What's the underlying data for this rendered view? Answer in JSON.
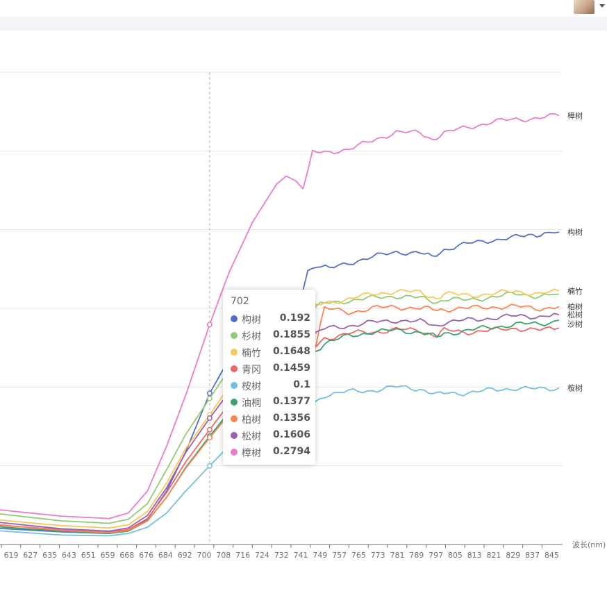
{
  "chart_data": {
    "type": "line",
    "xlabel": "波长(nm)",
    "ylabel": "",
    "x_ticks": [
      "619",
      "627",
      "635",
      "643",
      "651",
      "659",
      "668",
      "676",
      "684",
      "692",
      "700",
      "708",
      "716",
      "724",
      "732",
      "741",
      "749",
      "757",
      "765",
      "773",
      "781",
      "789",
      "797",
      "805",
      "813",
      "821",
      "829",
      "837",
      "845"
    ],
    "ylim": [
      0,
      0.6
    ],
    "grid": true,
    "tooltip": {
      "title": "702",
      "rows": [
        {
          "name": "构树",
          "value": "0.192"
        },
        {
          "name": "杉树",
          "value": "0.1855"
        },
        {
          "name": "楠竹",
          "value": "0.1648"
        },
        {
          "name": "青冈",
          "value": "0.1459"
        },
        {
          "name": "桉树",
          "value": "0.1"
        },
        {
          "name": "油桐",
          "value": "0.1377"
        },
        {
          "name": "柏树",
          "value": "0.1356"
        },
        {
          "name": "松树",
          "value": "0.1606"
        },
        {
          "name": "樟树",
          "value": "0.2794"
        }
      ]
    },
    "series": [
      {
        "name": "构树",
        "color": "#5470c6",
        "label": "构树",
        "points": [
          [
            611,
            0.021
          ],
          [
            640,
            0.016
          ],
          [
            660,
            0.014
          ],
          [
            668,
            0.018
          ],
          [
            676,
            0.032
          ],
          [
            684,
            0.068
          ],
          [
            692,
            0.118
          ],
          [
            702,
            0.192
          ],
          [
            710,
            0.235
          ],
          [
            720,
            0.275
          ],
          [
            728,
            0.303
          ],
          [
            732,
            0.315
          ],
          [
            735,
            0.315
          ],
          [
            739,
            0.298
          ],
          [
            743,
            0.348
          ],
          [
            747,
            0.355
          ],
          [
            752,
            0.35
          ],
          [
            760,
            0.358
          ],
          [
            770,
            0.365
          ],
          [
            780,
            0.372
          ],
          [
            790,
            0.37
          ],
          [
            795,
            0.365
          ],
          [
            800,
            0.375
          ],
          [
            810,
            0.382
          ],
          [
            820,
            0.387
          ],
          [
            830,
            0.39
          ],
          [
            837,
            0.394
          ],
          [
            842,
            0.395
          ],
          [
            848,
            0.397
          ]
        ]
      },
      {
        "name": "杉树",
        "color": "#91cc75",
        "label": "",
        "points": [
          [
            611,
            0.04
          ],
          [
            640,
            0.03
          ],
          [
            660,
            0.027
          ],
          [
            668,
            0.032
          ],
          [
            676,
            0.052
          ],
          [
            684,
            0.095
          ],
          [
            692,
            0.14
          ],
          [
            702,
            0.1855
          ],
          [
            710,
            0.222
          ],
          [
            720,
            0.262
          ],
          [
            730,
            0.285
          ],
          [
            740,
            0.293
          ],
          [
            745,
            0.3
          ],
          [
            750,
            0.306
          ],
          [
            760,
            0.31
          ],
          [
            770,
            0.313
          ],
          [
            780,
            0.316
          ],
          [
            790,
            0.313
          ],
          [
            797,
            0.308
          ],
          [
            800,
            0.312
          ],
          [
            810,
            0.31
          ],
          [
            820,
            0.315
          ],
          [
            830,
            0.318
          ],
          [
            840,
            0.316
          ],
          [
            848,
            0.318
          ]
        ]
      },
      {
        "name": "楠竹",
        "color": "#fac858",
        "label": "楠竹",
        "points": [
          [
            611,
            0.032
          ],
          [
            640,
            0.024
          ],
          [
            660,
            0.021
          ],
          [
            668,
            0.025
          ],
          [
            676,
            0.042
          ],
          [
            684,
            0.078
          ],
          [
            692,
            0.122
          ],
          [
            702,
            0.1648
          ],
          [
            710,
            0.2
          ],
          [
            720,
            0.24
          ],
          [
            730,
            0.268
          ],
          [
            740,
            0.29
          ],
          [
            745,
            0.3
          ],
          [
            750,
            0.307
          ],
          [
            760,
            0.312
          ],
          [
            770,
            0.318
          ],
          [
            780,
            0.322
          ],
          [
            790,
            0.32
          ],
          [
            797,
            0.313
          ],
          [
            800,
            0.318
          ],
          [
            810,
            0.317
          ],
          [
            820,
            0.318
          ],
          [
            830,
            0.322
          ],
          [
            840,
            0.318
          ],
          [
            848,
            0.322
          ]
        ]
      },
      {
        "name": "青冈",
        "color": "#ee6666",
        "label": "",
        "points": [
          [
            611,
            0.025
          ],
          [
            640,
            0.019
          ],
          [
            660,
            0.016
          ],
          [
            668,
            0.019
          ],
          [
            676,
            0.033
          ],
          [
            684,
            0.066
          ],
          [
            692,
            0.105
          ],
          [
            702,
            0.1459
          ],
          [
            710,
            0.178
          ],
          [
            720,
            0.213
          ],
          [
            730,
            0.238
          ],
          [
            740,
            0.245
          ],
          [
            745,
            0.248
          ],
          [
            750,
            0.262
          ],
          [
            760,
            0.268
          ],
          [
            770,
            0.27
          ],
          [
            780,
            0.273
          ],
          [
            790,
            0.272
          ],
          [
            797,
            0.265
          ],
          [
            800,
            0.272
          ],
          [
            810,
            0.27
          ],
          [
            820,
            0.272
          ],
          [
            830,
            0.275
          ],
          [
            840,
            0.272
          ],
          [
            848,
            0.275
          ]
        ]
      },
      {
        "name": "桉树",
        "color": "#73c0de",
        "label": "桉树",
        "points": [
          [
            611,
            0.018
          ],
          [
            640,
            0.012
          ],
          [
            660,
            0.011
          ],
          [
            668,
            0.014
          ],
          [
            676,
            0.022
          ],
          [
            684,
            0.04
          ],
          [
            692,
            0.068
          ],
          [
            702,
            0.1
          ],
          [
            710,
            0.125
          ],
          [
            720,
            0.15
          ],
          [
            730,
            0.165
          ],
          [
            740,
            0.172
          ],
          [
            745,
            0.178
          ],
          [
            750,
            0.19
          ],
          [
            760,
            0.194
          ],
          [
            770,
            0.196
          ],
          [
            780,
            0.2
          ],
          [
            790,
            0.198
          ],
          [
            797,
            0.19
          ],
          [
            800,
            0.192
          ],
          [
            810,
            0.193
          ],
          [
            820,
            0.196
          ],
          [
            830,
            0.199
          ],
          [
            840,
            0.197
          ],
          [
            848,
            0.199
          ]
        ]
      },
      {
        "name": "油桐",
        "color": "#3ba272",
        "label": "",
        "points": [
          [
            611,
            0.023
          ],
          [
            640,
            0.017
          ],
          [
            660,
            0.014
          ],
          [
            668,
            0.017
          ],
          [
            676,
            0.03
          ],
          [
            684,
            0.06
          ],
          [
            692,
            0.098
          ],
          [
            702,
            0.1377
          ],
          [
            710,
            0.168
          ],
          [
            720,
            0.203
          ],
          [
            730,
            0.228
          ],
          [
            740,
            0.24
          ],
          [
            745,
            0.244
          ],
          [
            750,
            0.255
          ],
          [
            760,
            0.265
          ],
          [
            770,
            0.27
          ],
          [
            780,
            0.272
          ],
          [
            790,
            0.27
          ],
          [
            797,
            0.263
          ],
          [
            800,
            0.268
          ],
          [
            810,
            0.272
          ],
          [
            820,
            0.276
          ],
          [
            830,
            0.28
          ],
          [
            840,
            0.28
          ],
          [
            848,
            0.285
          ]
        ]
      },
      {
        "name": "柏树",
        "color": "#fc8452",
        "label": "柏树",
        "points": [
          [
            611,
            0.026
          ],
          [
            640,
            0.018
          ],
          [
            660,
            0.015
          ],
          [
            668,
            0.018
          ],
          [
            676,
            0.03
          ],
          [
            684,
            0.06
          ],
          [
            692,
            0.097
          ],
          [
            702,
            0.1356
          ],
          [
            710,
            0.165
          ],
          [
            720,
            0.198
          ],
          [
            730,
            0.225
          ],
          [
            740,
            0.24
          ],
          [
            745,
            0.24
          ],
          [
            750,
            0.3
          ],
          [
            760,
            0.295
          ],
          [
            770,
            0.3
          ],
          [
            780,
            0.302
          ],
          [
            790,
            0.3
          ],
          [
            797,
            0.298
          ],
          [
            800,
            0.299
          ],
          [
            810,
            0.3
          ],
          [
            820,
            0.302
          ],
          [
            830,
            0.302
          ],
          [
            840,
            0.3
          ],
          [
            848,
            0.302
          ]
        ]
      },
      {
        "name": "松树",
        "color": "#9a60b4",
        "label": "松树",
        "points": [
          [
            611,
            0.029
          ],
          [
            640,
            0.02
          ],
          [
            660,
            0.017
          ],
          [
            668,
            0.021
          ],
          [
            676,
            0.037
          ],
          [
            684,
            0.072
          ],
          [
            692,
            0.117
          ],
          [
            702,
            0.1606
          ],
          [
            710,
            0.193
          ],
          [
            720,
            0.225
          ],
          [
            730,
            0.248
          ],
          [
            740,
            0.262
          ],
          [
            745,
            0.265
          ],
          [
            750,
            0.274
          ],
          [
            760,
            0.278
          ],
          [
            770,
            0.282
          ],
          [
            780,
            0.285
          ],
          [
            790,
            0.283
          ],
          [
            797,
            0.278
          ],
          [
            800,
            0.282
          ],
          [
            810,
            0.285
          ],
          [
            820,
            0.288
          ],
          [
            830,
            0.29
          ],
          [
            840,
            0.29
          ],
          [
            848,
            0.292
          ]
        ]
      },
      {
        "name": "樟树",
        "color": "#ea7ccc",
        "label": "樟树",
        "points": [
          [
            611,
            0.045
          ],
          [
            640,
            0.036
          ],
          [
            660,
            0.033
          ],
          [
            668,
            0.04
          ],
          [
            676,
            0.068
          ],
          [
            684,
            0.125
          ],
          [
            692,
            0.19
          ],
          [
            702,
            0.2794
          ],
          [
            710,
            0.345
          ],
          [
            720,
            0.41
          ],
          [
            730,
            0.458
          ],
          [
            734,
            0.468
          ],
          [
            738,
            0.462
          ],
          [
            741,
            0.452
          ],
          [
            745,
            0.498
          ],
          [
            750,
            0.497
          ],
          [
            760,
            0.503
          ],
          [
            770,
            0.512
          ],
          [
            780,
            0.525
          ],
          [
            790,
            0.522
          ],
          [
            795,
            0.515
          ],
          [
            800,
            0.523
          ],
          [
            810,
            0.53
          ],
          [
            820,
            0.537
          ],
          [
            830,
            0.54
          ],
          [
            840,
            0.542
          ],
          [
            848,
            0.545
          ]
        ]
      }
    ],
    "extra_labels": [
      "沙树"
    ]
  }
}
